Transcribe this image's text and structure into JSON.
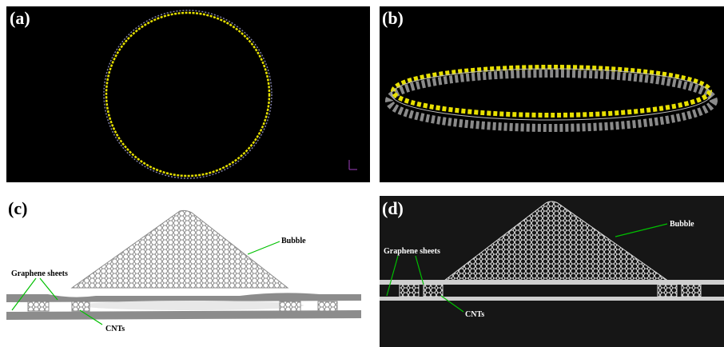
{
  "panels": [
    {
      "label": "(a)"
    },
    {
      "label": "(b)"
    },
    {
      "label": "(c)",
      "annotations": [
        "Bubble",
        "Graphene sheets",
        "CNTs"
      ]
    },
    {
      "label": "(d)",
      "annotations": [
        "Bubble",
        "Graphene sheets",
        "CNTs"
      ]
    }
  ]
}
